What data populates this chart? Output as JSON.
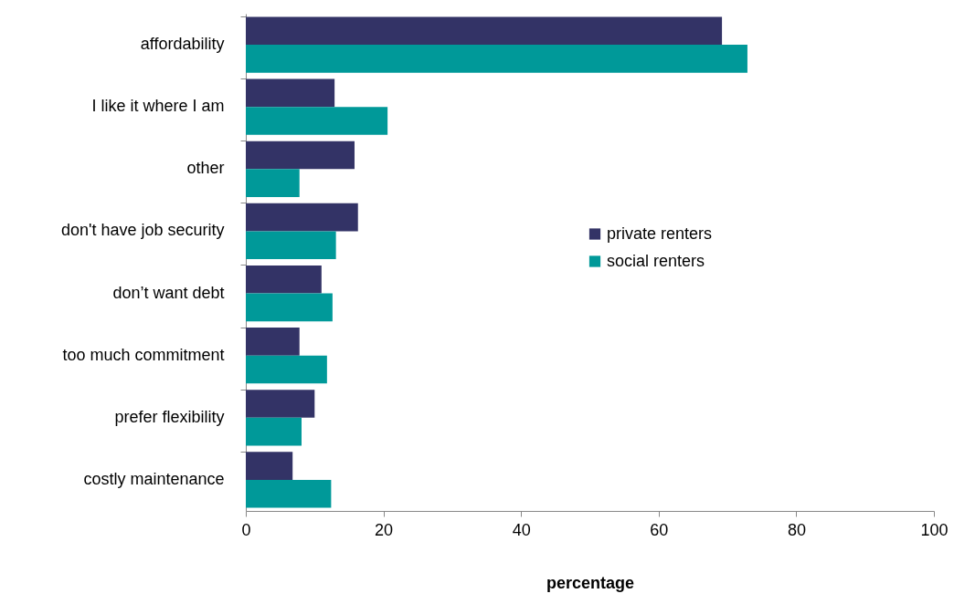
{
  "chart_data": {
    "type": "bar",
    "orientation": "horizontal",
    "xlabel": "percentage",
    "categories": [
      "affordability",
      "I like it where I am",
      "other",
      "don't have job security",
      "don’t want debt",
      "too much commitment",
      "prefer flexibility",
      "costly maintenance"
    ],
    "series": [
      {
        "name": "private renters",
        "color": "#333366",
        "values": [
          69.2,
          12.9,
          15.8,
          16.3,
          11.0,
          7.8,
          10.0,
          6.8
        ]
      },
      {
        "name": "social renters",
        "color": "#009999",
        "values": [
          72.9,
          20.6,
          7.8,
          13.1,
          12.6,
          11.8,
          8.1,
          12.4
        ]
      }
    ],
    "xlim": [
      0,
      100
    ],
    "xticks": [
      0,
      20,
      40,
      60,
      80,
      100
    ],
    "grid": false,
    "legend": "right"
  }
}
